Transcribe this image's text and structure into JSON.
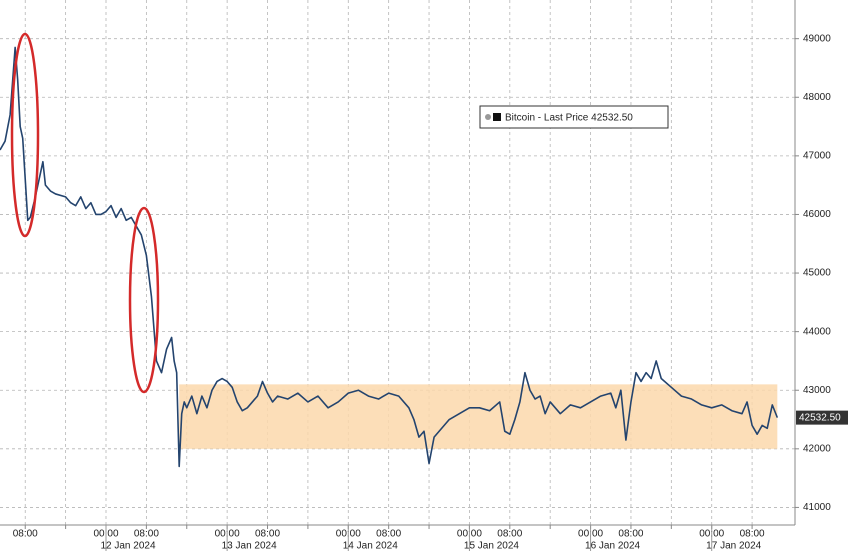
{
  "chart_data": {
    "type": "line",
    "x": [
      "2024-01-11T03:00",
      "2024-01-11T04:00",
      "2024-01-11T05:00",
      "2024-01-11T06:00",
      "2024-01-11T06:30",
      "2024-01-11T07:00",
      "2024-01-11T07:30",
      "2024-01-11T08:00",
      "2024-01-11T08:30",
      "2024-01-11T09:00",
      "2024-01-11T10:00",
      "2024-01-11T11:00",
      "2024-01-11T11:30",
      "2024-01-11T12:00",
      "2024-01-11T13:00",
      "2024-01-11T14:00",
      "2024-01-11T16:00",
      "2024-01-11T17:00",
      "2024-01-11T18:00",
      "2024-01-11T19:00",
      "2024-01-11T20:00",
      "2024-01-11T21:00",
      "2024-01-11T22:00",
      "2024-01-11T23:00",
      "2024-01-12T00:00",
      "2024-01-12T01:00",
      "2024-01-12T02:00",
      "2024-01-12T03:00",
      "2024-01-12T04:00",
      "2024-01-12T05:00",
      "2024-01-12T06:00",
      "2024-01-12T07:00",
      "2024-01-12T08:00",
      "2024-01-12T09:00",
      "2024-01-12T10:00",
      "2024-01-12T11:00",
      "2024-01-12T12:00",
      "2024-01-12T13:00",
      "2024-01-12T13:30",
      "2024-01-12T14:00",
      "2024-01-12T14:30",
      "2024-01-12T15:00",
      "2024-01-12T15:30",
      "2024-01-12T16:00",
      "2024-01-12T17:00",
      "2024-01-12T18:00",
      "2024-01-12T19:00",
      "2024-01-12T20:00",
      "2024-01-12T21:00",
      "2024-01-12T22:00",
      "2024-01-12T23:00",
      "2024-01-13T00:00",
      "2024-01-13T01:00",
      "2024-01-13T02:00",
      "2024-01-13T03:00",
      "2024-01-13T04:00",
      "2024-01-13T05:00",
      "2024-01-13T06:00",
      "2024-01-13T07:00",
      "2024-01-13T08:00",
      "2024-01-13T09:00",
      "2024-01-13T10:00",
      "2024-01-13T12:00",
      "2024-01-13T14:00",
      "2024-01-13T16:00",
      "2024-01-13T18:00",
      "2024-01-13T20:00",
      "2024-01-13T22:00",
      "2024-01-14T00:00",
      "2024-01-14T02:00",
      "2024-01-14T04:00",
      "2024-01-14T06:00",
      "2024-01-14T08:00",
      "2024-01-14T10:00",
      "2024-01-14T12:00",
      "2024-01-14T13:00",
      "2024-01-14T14:00",
      "2024-01-14T15:00",
      "2024-01-14T16:00",
      "2024-01-14T17:00",
      "2024-01-14T18:00",
      "2024-01-14T19:00",
      "2024-01-14T20:00",
      "2024-01-14T22:00",
      "2024-01-15T00:00",
      "2024-01-15T02:00",
      "2024-01-15T04:00",
      "2024-01-15T06:00",
      "2024-01-15T07:00",
      "2024-01-15T08:00",
      "2024-01-15T09:00",
      "2024-01-15T10:00",
      "2024-01-15T11:00",
      "2024-01-15T12:00",
      "2024-01-15T13:00",
      "2024-01-15T14:00",
      "2024-01-15T15:00",
      "2024-01-15T16:00",
      "2024-01-15T18:00",
      "2024-01-15T20:00",
      "2024-01-15T22:00",
      "2024-01-16T00:00",
      "2024-01-16T02:00",
      "2024-01-16T04:00",
      "2024-01-16T05:00",
      "2024-01-16T06:00",
      "2024-01-16T07:00",
      "2024-01-16T08:00",
      "2024-01-16T09:00",
      "2024-01-16T10:00",
      "2024-01-16T11:00",
      "2024-01-16T12:00",
      "2024-01-16T13:00",
      "2024-01-16T14:00",
      "2024-01-16T16:00",
      "2024-01-16T18:00",
      "2024-01-16T20:00",
      "2024-01-16T22:00",
      "2024-01-17T00:00",
      "2024-01-17T02:00",
      "2024-01-17T04:00",
      "2024-01-17T06:00",
      "2024-01-17T07:00",
      "2024-01-17T08:00",
      "2024-01-17T09:00",
      "2024-01-17T10:00",
      "2024-01-17T11:00",
      "2024-01-17T12:00",
      "2024-01-17T13:00"
    ],
    "series": [
      {
        "name": "Bitcoin - Last Price",
        "color": "#24446e",
        "values": [
          47100,
          47250,
          47700,
          48850,
          48300,
          47500,
          47300,
          46600,
          45900,
          45950,
          46300,
          46700,
          46900,
          46500,
          46400,
          46350,
          46300,
          46200,
          46150,
          46300,
          46100,
          46200,
          46000,
          46000,
          46050,
          46150,
          45950,
          46100,
          45900,
          45950,
          45800,
          45650,
          45300,
          44600,
          43500,
          43300,
          43700,
          43900,
          43500,
          43300,
          41700,
          42600,
          42800,
          42700,
          42900,
          42600,
          42900,
          42700,
          43000,
          43150,
          43200,
          43150,
          43050,
          42800,
          42650,
          42700,
          42800,
          42900,
          43150,
          42950,
          42800,
          42900,
          42850,
          42950,
          42800,
          42900,
          42700,
          42800,
          42950,
          43000,
          42900,
          42850,
          42950,
          42900,
          42700,
          42500,
          42200,
          42300,
          41750,
          42200,
          42300,
          42400,
          42500,
          42600,
          42700,
          42700,
          42650,
          42800,
          42300,
          42250,
          42500,
          42800,
          43300,
          43000,
          42850,
          42900,
          42600,
          42800,
          42600,
          42750,
          42700,
          42800,
          42900,
          42950,
          42700,
          43000,
          42150,
          42800,
          43300,
          43150,
          43300,
          43200,
          43500,
          43200,
          43050,
          42900,
          42850,
          42750,
          42700,
          42750,
          42650,
          42600,
          42800,
          42400,
          42250,
          42400,
          42350,
          42750,
          42532.5
        ]
      }
    ],
    "last_price": {
      "value": 42532.5,
      "label": "42532.50"
    },
    "highlight_band": {
      "ylim": [
        42000,
        43100
      ],
      "xlim": [
        "2024-01-12T14:30",
        "2024-01-17T13:00"
      ],
      "color": "#fbd8ab"
    },
    "xlim": [
      "2024-01-11T03:00",
      "2024-01-17T16:30"
    ],
    "xticks": [
      {
        "value": "2024-01-11T08:00",
        "label": "08:00"
      },
      {
        "value": "2024-01-11T16:00",
        "label": null
      },
      {
        "value": "2024-01-12T00:00",
        "label": "00:00"
      },
      {
        "value": "2024-01-12T08:00",
        "label": "08:00"
      },
      {
        "value": "2024-01-12T16:00",
        "label": null
      },
      {
        "value": "2024-01-13T00:00",
        "label": "00:00"
      },
      {
        "value": "2024-01-13T08:00",
        "label": "08:00"
      },
      {
        "value": "2024-01-13T16:00",
        "label": null
      },
      {
        "value": "2024-01-14T00:00",
        "label": "00:00"
      },
      {
        "value": "2024-01-14T08:00",
        "label": "08:00"
      },
      {
        "value": "2024-01-14T16:00",
        "label": null
      },
      {
        "value": "2024-01-15T00:00",
        "label": "00:00"
      },
      {
        "value": "2024-01-15T08:00",
        "label": "08:00"
      },
      {
        "value": "2024-01-15T16:00",
        "label": null
      },
      {
        "value": "2024-01-16T00:00",
        "label": "00:00"
      },
      {
        "value": "2024-01-16T08:00",
        "label": "08:00"
      },
      {
        "value": "2024-01-16T16:00",
        "label": null
      },
      {
        "value": "2024-01-17T00:00",
        "label": "00:00"
      },
      {
        "value": "2024-01-17T08:00",
        "label": "08:00"
      }
    ],
    "xdates": [
      {
        "value": "2024-01-12T00:00",
        "label": "12 Jan 2024"
      },
      {
        "value": "2024-01-13T00:00",
        "label": "13 Jan 2024"
      },
      {
        "value": "2024-01-14T00:00",
        "label": "14 Jan 2024"
      },
      {
        "value": "2024-01-15T00:00",
        "label": "15 Jan 2024"
      },
      {
        "value": "2024-01-16T00:00",
        "label": "16 Jan 2024"
      },
      {
        "value": "2024-01-17T00:00",
        "label": "17 Jan 2024"
      }
    ],
    "ylim": [
      40700,
      49660
    ],
    "yticks": [
      41000,
      42000,
      43000,
      44000,
      45000,
      46000,
      47000,
      48000,
      49000
    ],
    "grid": true
  }
}
